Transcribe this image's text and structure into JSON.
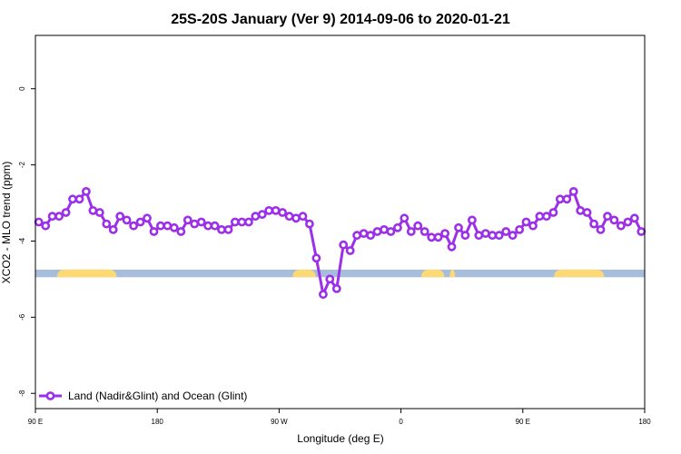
{
  "chart_data": {
    "type": "line",
    "title": "25S-20S January (Ver 9)   2014-09-06 to 2020-01-21",
    "xlabel": "Longitude (deg E)",
    "ylabel": "XCO2 - MLO trend (ppm)",
    "x_ticks": [
      {
        "value": 90,
        "label": "90 E"
      },
      {
        "value": 180,
        "label": "180"
      },
      {
        "value": 270,
        "label": "90 W"
      },
      {
        "value": 360,
        "label": "0"
      },
      {
        "value": 450,
        "label": "90 E"
      },
      {
        "value": 540,
        "label": "180"
      }
    ],
    "y_ticks": [
      {
        "value": 0,
        "label": "0"
      },
      {
        "value": -2,
        "label": "-2"
      },
      {
        "value": -4,
        "label": "-4"
      },
      {
        "value": -6,
        "label": "-6"
      },
      {
        "value": -8,
        "label": "-8"
      }
    ],
    "xlim": [
      90,
      540
    ],
    "ylim": [
      -8.4,
      1.4
    ],
    "grid": false,
    "legend_position": "bottom-left",
    "series": [
      {
        "name": "Land (Nadir&Glint) and Ocean (Glint)",
        "color": "#9B30E8",
        "x": [
          92.5,
          97.5,
          102.5,
          107.5,
          112.5,
          117.5,
          122.5,
          127.5,
          132.5,
          137.5,
          142.5,
          147.5,
          152.5,
          157.5,
          162.5,
          167.5,
          172.5,
          177.5,
          182.5,
          187.5,
          192.5,
          197.5,
          202.5,
          207.5,
          212.5,
          217.5,
          222.5,
          227.5,
          232.5,
          237.5,
          242.5,
          247.5,
          252.5,
          257.5,
          262.5,
          267.5,
          272.5,
          277.5,
          282.5,
          287.5,
          292.5,
          297.5,
          302.5,
          307.5,
          312.5,
          317.5,
          322.5,
          327.5,
          332.5,
          337.5,
          342.5,
          347.5,
          352.5,
          357.5,
          362.5,
          367.5,
          372.5,
          377.5,
          382.5,
          387.5,
          392.5,
          397.5,
          402.5,
          407.5,
          412.5,
          417.5,
          422.5,
          427.5,
          432.5,
          437.5,
          442.5,
          447.5,
          452.5,
          457.5,
          462.5,
          467.5,
          472.5,
          477.5,
          482.5,
          487.5,
          492.5,
          497.5,
          502.5,
          507.5,
          512.5,
          517.5,
          522.5,
          527.5,
          532.5,
          537.5
        ],
        "values": [
          -3.5,
          -3.6,
          -3.35,
          -3.35,
          -3.25,
          -2.9,
          -2.9,
          -2.7,
          -3.2,
          -3.25,
          -3.55,
          -3.7,
          -3.35,
          -3.45,
          -3.6,
          -3.5,
          -3.4,
          -3.75,
          -3.6,
          -3.6,
          -3.65,
          -3.75,
          -3.45,
          -3.55,
          -3.5,
          -3.6,
          -3.6,
          -3.7,
          -3.7,
          -3.5,
          -3.5,
          -3.5,
          -3.35,
          -3.3,
          -3.2,
          -3.2,
          -3.25,
          -3.35,
          -3.4,
          -3.35,
          -3.55,
          -4.45,
          -5.4,
          -5.0,
          -5.25,
          -4.1,
          -4.25,
          -3.85,
          -3.8,
          -3.85,
          -3.75,
          -3.7,
          -3.75,
          -3.65,
          -3.4,
          -3.75,
          -3.6,
          -3.75,
          -3.9,
          -3.9,
          -3.8,
          -4.15,
          -3.65,
          -3.85,
          -3.45,
          -3.85,
          -3.8,
          -3.85,
          -3.85,
          -3.75,
          -3.85,
          -3.7,
          -3.5,
          -3.6,
          -3.35,
          -3.35,
          -3.25,
          -2.9,
          -2.9,
          -2.7,
          -3.2,
          -3.25,
          -3.55,
          -3.7,
          -3.35,
          -3.45,
          -3.6,
          -3.5,
          -3.4,
          -3.75
        ]
      }
    ],
    "surface_band": {
      "y_range": [
        -4.75,
        -4.95
      ],
      "ocean_color": "#A6BDDB",
      "land_color": "#FDD976",
      "land_segments": [
        [
          113,
          150
        ],
        [
          106,
          148
        ],
        [
          280,
          297
        ],
        [
          375,
          392
        ],
        [
          396,
          400
        ],
        [
          473,
          510
        ]
      ]
    }
  }
}
